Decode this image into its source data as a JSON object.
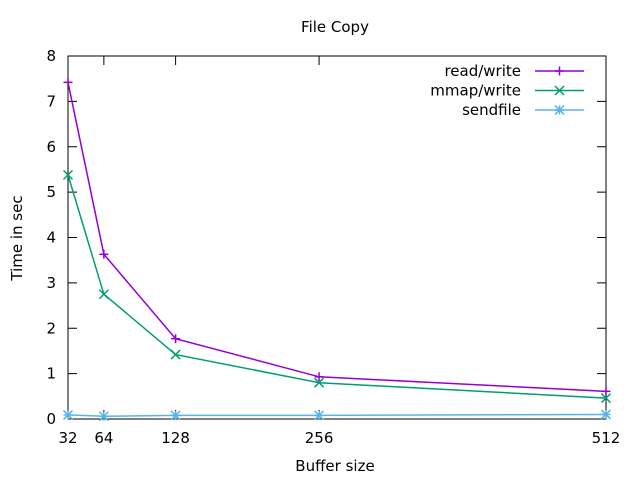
{
  "chart_data": {
    "type": "line",
    "title": "File Copy",
    "xlabel": "Buffer size",
    "ylabel": "Time in sec",
    "x": [
      32,
      64,
      128,
      256,
      512
    ],
    "xticks": [
      32,
      64,
      128,
      256,
      512
    ],
    "xlim": [
      32,
      512
    ],
    "ylim": [
      0,
      8
    ],
    "yticks": [
      0,
      1,
      2,
      3,
      4,
      5,
      6,
      7,
      8
    ],
    "legend_position": "top-right",
    "grid": false,
    "series": [
      {
        "name": "read/write",
        "color": "#9400d3",
        "marker": "plus",
        "values": [
          7.42,
          3.63,
          1.77,
          0.93,
          0.61
        ]
      },
      {
        "name": "mmap/write",
        "color": "#009e73",
        "marker": "cross",
        "values": [
          5.38,
          2.75,
          1.42,
          0.8,
          0.46
        ]
      },
      {
        "name": "sendfile",
        "color": "#56b4e9",
        "marker": "star",
        "values": [
          0.09,
          0.06,
          0.08,
          0.08,
          0.1
        ]
      }
    ]
  }
}
